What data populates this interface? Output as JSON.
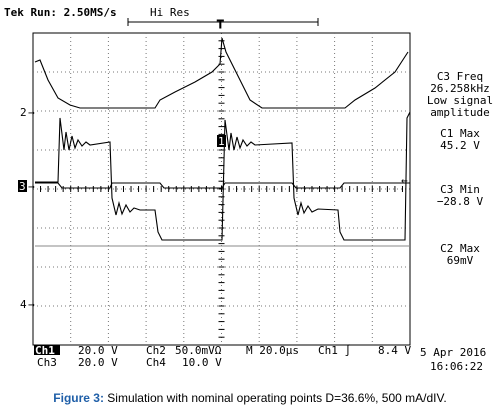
{
  "header": {
    "status": "Tek Run: 2.50MS/s",
    "mode": "Hi Res"
  },
  "markers": {
    "ch2": "2",
    "ch3": "3",
    "ch4": "4",
    "ch1": "1"
  },
  "measurements": [
    {
      "lines": [
        "C3 Freq",
        "26.258kHz",
        "Low signal",
        "amplitude"
      ]
    },
    {
      "lines": [
        "C1 Max",
        "45.2 V"
      ]
    },
    {
      "lines": [
        "C3 Min",
        "−28.8 V"
      ]
    },
    {
      "lines": [
        "C2 Max",
        "69mV"
      ]
    }
  ],
  "footer": {
    "ch1": "Ch1",
    "ch1_scale": "20.0 V",
    "ch2": "Ch2",
    "ch2_scale": "50.0mVΩ",
    "time": "M 20.0µs",
    "trigger": "Ch1 ∫",
    "level": "8.4 V",
    "date": "5 Apr 2016",
    "ch3": "Ch3",
    "ch3_scale": "20.0 V",
    "ch4": "Ch4",
    "ch4_scale": "10.0 V",
    "clock": "16:06:22"
  },
  "caption": {
    "label": "Figure 3:",
    "text": " Simulation with nominal operating points D=36.6%, 500 mA/dIV."
  }
}
